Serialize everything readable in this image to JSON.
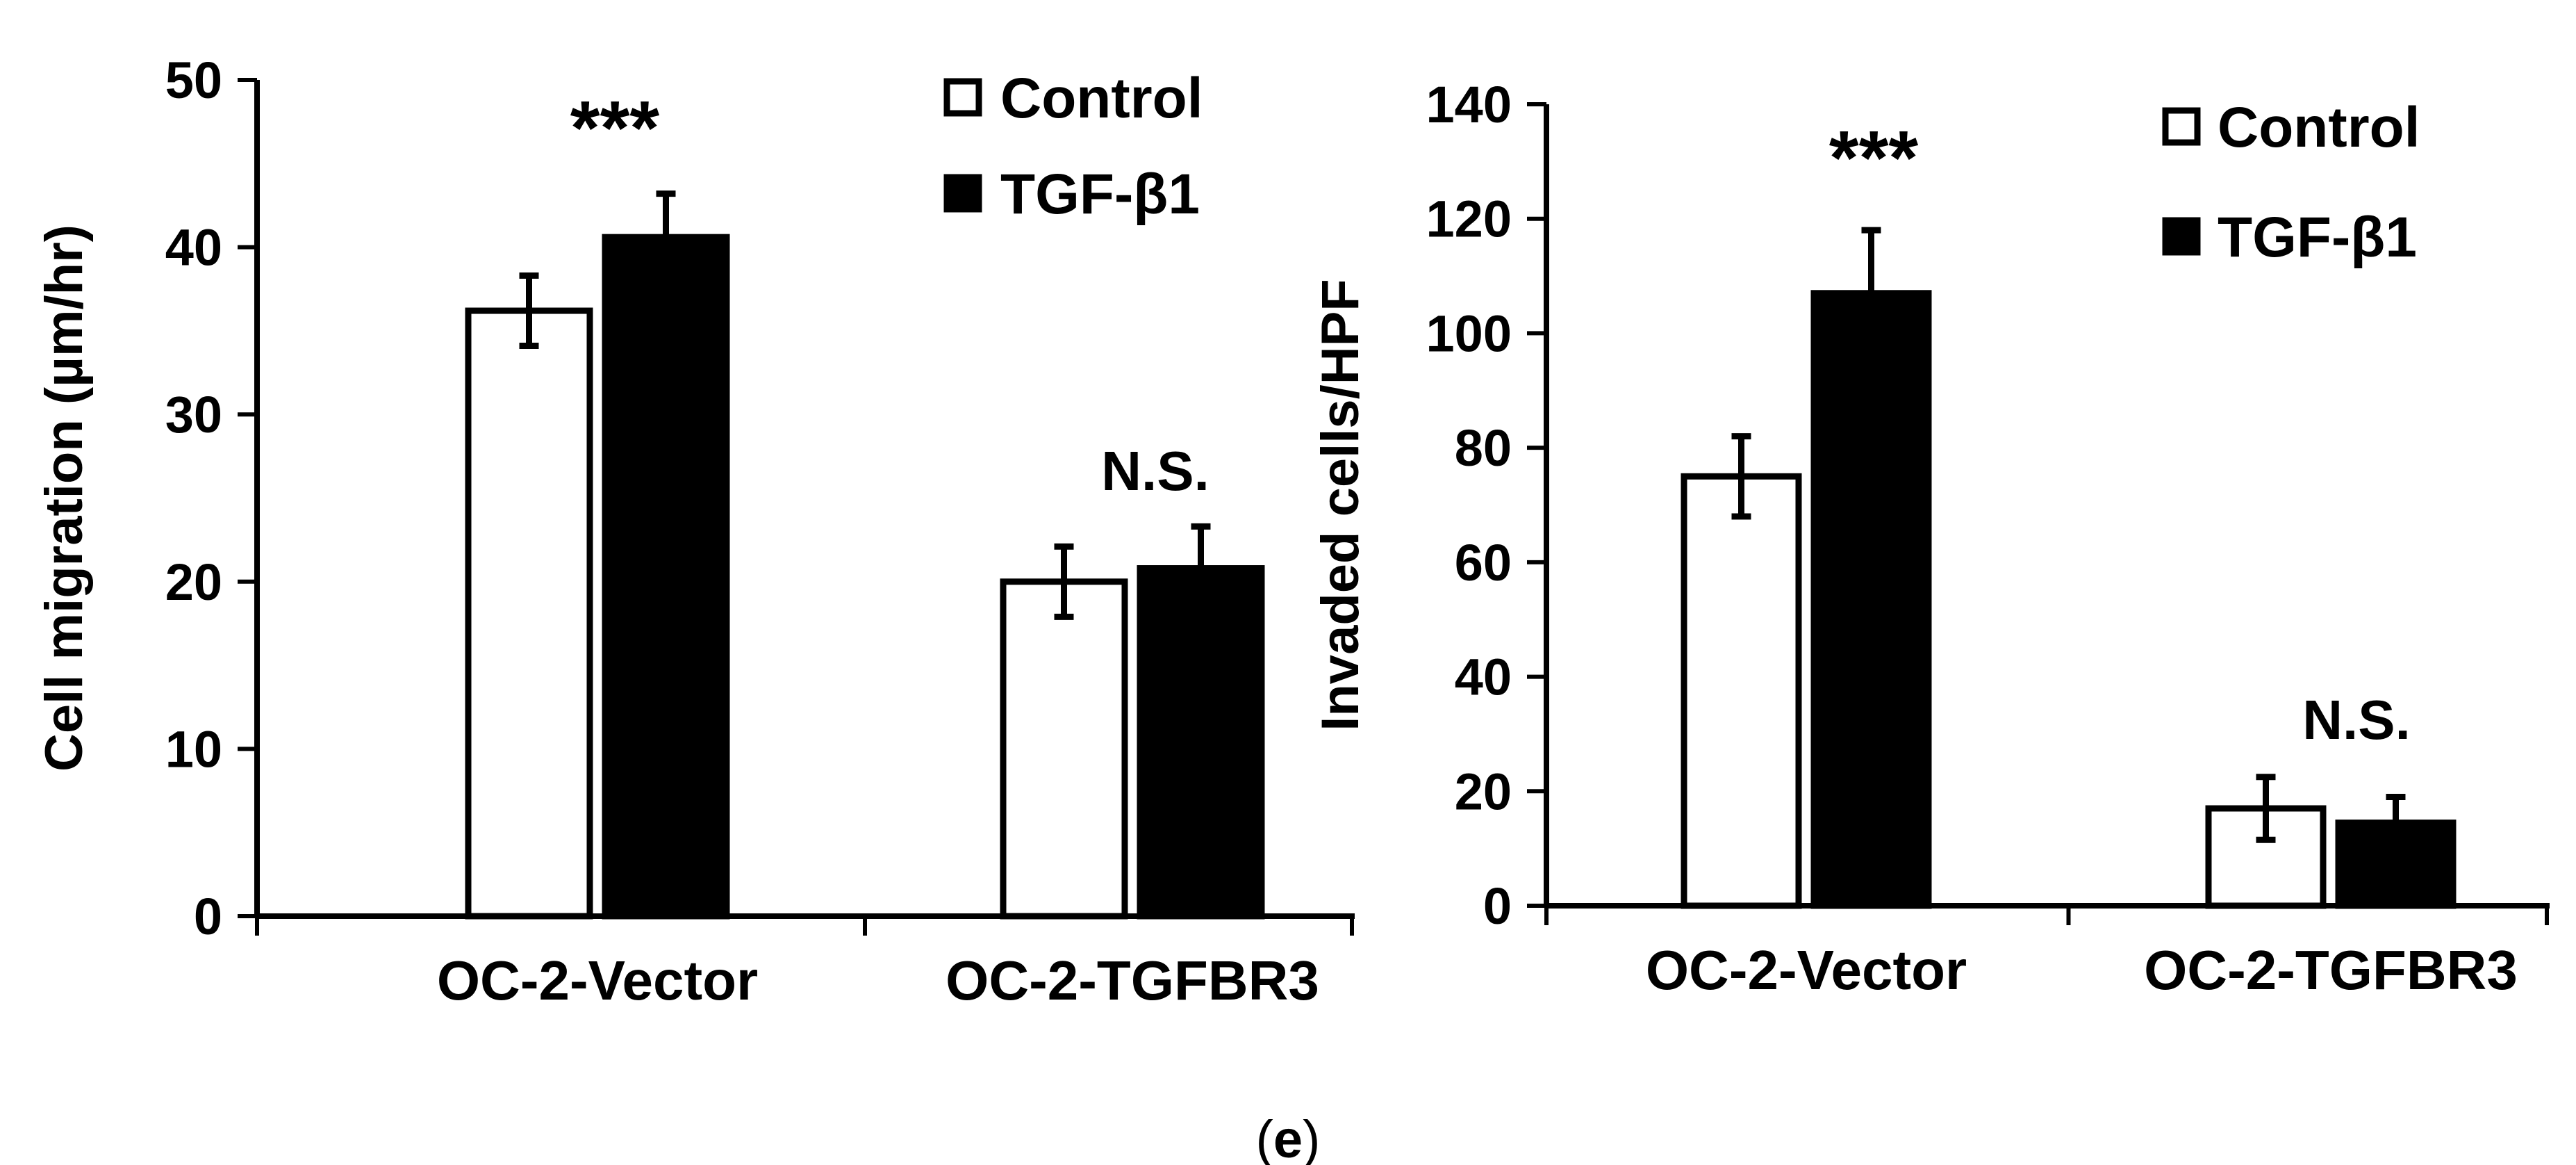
{
  "figure": {
    "caption_open": "(",
    "caption_letter": "e",
    "caption_close": ")"
  },
  "colors": {
    "control_fill": "#ffffff",
    "tgf_fill": "#000000",
    "stroke": "#000000"
  },
  "chart_data": [
    {
      "type": "bar",
      "title": "",
      "xlabel": "",
      "ylabel": "Cell migration (µm/hr)",
      "ylim": [
        0,
        50
      ],
      "yticks": [
        0,
        10,
        20,
        30,
        40,
        50
      ],
      "categories": [
        "OC-2-Vector",
        "OC-2-TGFBR3"
      ],
      "series": [
        {
          "name": "Control",
          "values": [
            36.2,
            20.0
          ],
          "errors": [
            2.1,
            2.1
          ]
        },
        {
          "name": "TGF-β1",
          "values": [
            40.6,
            20.8
          ],
          "errors": [
            2.6,
            2.5
          ]
        }
      ],
      "annotations": [
        "***",
        "N.S."
      ],
      "legend": [
        "Control",
        "TGF-β1"
      ],
      "legend_position": "top-right",
      "grid": false
    },
    {
      "type": "bar",
      "title": "",
      "xlabel": "",
      "ylabel": "Invaded cells/HPF",
      "ylim": [
        0,
        140
      ],
      "yticks": [
        0,
        20,
        40,
        60,
        80,
        100,
        120,
        140
      ],
      "categories": [
        "OC-2-Vector",
        "OC-2-TGFBR3"
      ],
      "series": [
        {
          "name": "Control",
          "values": [
            75,
            17
          ],
          "errors": [
            7,
            5.5
          ]
        },
        {
          "name": "TGF-β1",
          "values": [
            107,
            14.5
          ],
          "errors": [
            11,
            4.5
          ]
        }
      ],
      "annotations": [
        "***",
        "N.S."
      ],
      "legend": [
        "Control",
        "TGF-β1"
      ],
      "legend_position": "top-right",
      "grid": false
    }
  ]
}
